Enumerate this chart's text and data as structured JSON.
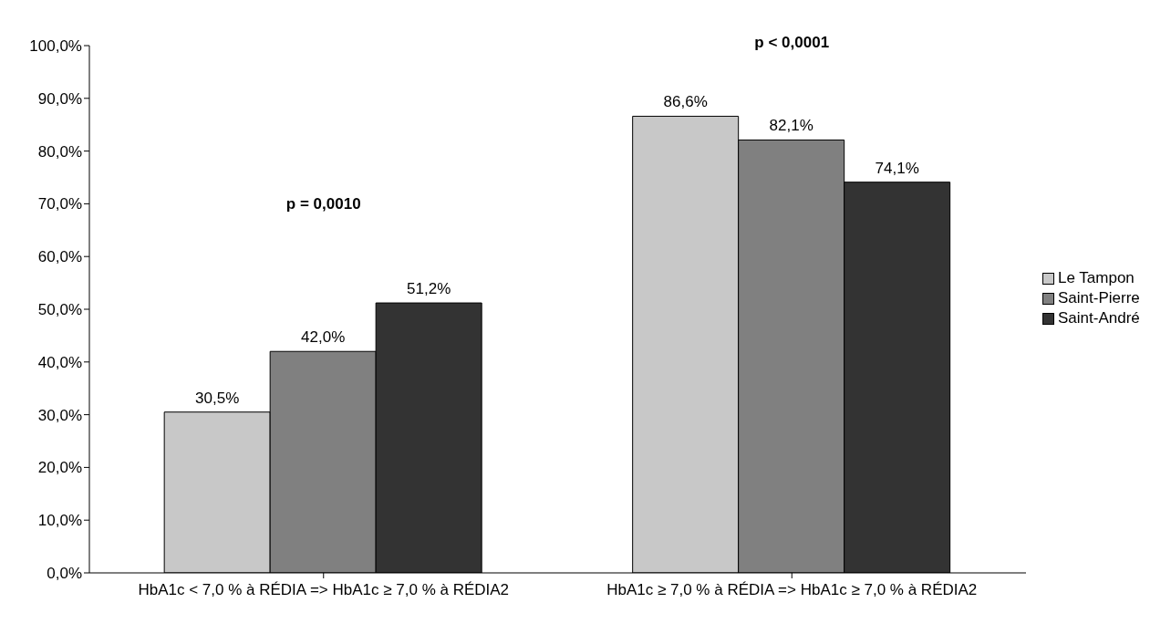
{
  "chart_data": {
    "type": "bar",
    "categories": [
      "HbA1c < 7,0 % à RÉDIA => HbA1c ≥ 7,0 % à RÉDIA2",
      "HbA1c ≥ 7,0 % à RÉDIA => HbA1c ≥ 7,0 % à RÉDIA2"
    ],
    "series": [
      {
        "name": "Le Tampon",
        "color": "#c8c8c8",
        "values": [
          30.5,
          86.6
        ],
        "value_labels": [
          "30,5%",
          "86,6%"
        ]
      },
      {
        "name": "Saint-Pierre",
        "color": "#808080",
        "values": [
          42.0,
          82.1
        ],
        "value_labels": [
          "42,0%",
          "82,1%"
        ]
      },
      {
        "name": "Saint-André",
        "color": "#333333",
        "values": [
          51.2,
          74.1
        ],
        "value_labels": [
          "51,2%",
          "74,1%"
        ]
      }
    ],
    "ylim": [
      0,
      100
    ],
    "yticks": [
      {
        "value": 0,
        "label": "0,0%"
      },
      {
        "value": 10,
        "label": "10,0%"
      },
      {
        "value": 20,
        "label": "20,0%"
      },
      {
        "value": 30,
        "label": "30,0%"
      },
      {
        "value": 40,
        "label": "40,0%"
      },
      {
        "value": 50,
        "label": "50,0%"
      },
      {
        "value": 60,
        "label": "60,0%"
      },
      {
        "value": 70,
        "label": "70,0%"
      },
      {
        "value": 80,
        "label": "80,0%"
      },
      {
        "value": 90,
        "label": "90,0%"
      },
      {
        "value": 100,
        "label": "100,0%"
      }
    ],
    "annotations": [
      "p = 0,0010",
      "p < 0,0001"
    ],
    "grid": false,
    "legend": "right"
  }
}
